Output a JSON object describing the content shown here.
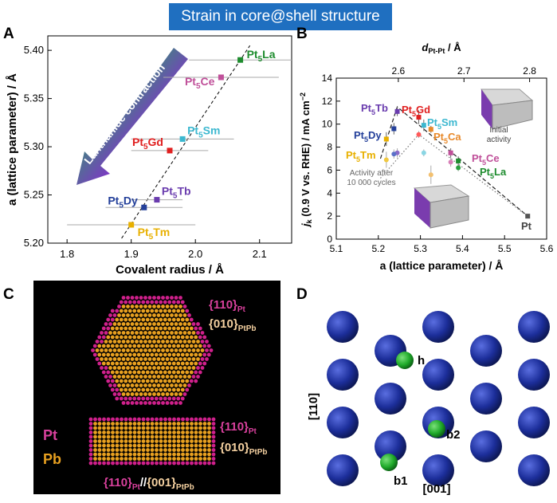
{
  "banner": {
    "title": "Strain in core@shell structure"
  },
  "panels": {
    "A": "A",
    "B": "B",
    "C": "C",
    "D": "D"
  },
  "chart_data": [
    {
      "type": "scatter",
      "panel": "A",
      "xlabel": "Covalent radius / Å",
      "ylabel": "a (lattice parameter) / Å",
      "xlim": [
        1.77,
        2.15
      ],
      "ylim": [
        5.2,
        5.415
      ],
      "xticks": [
        "1.8",
        "1.9",
        "2.0",
        "2.1"
      ],
      "yticks": [
        "5.20",
        "5.25",
        "5.30",
        "5.35",
        "5.40"
      ],
      "arrow_label": "Lanthanide contraction",
      "points": [
        {
          "name": "Pt5La",
          "label": "Pt",
          "sub": "5",
          "suffix": "La",
          "x": 2.07,
          "y": 5.39,
          "xerr": 0.08,
          "color": "#1e8c2e"
        },
        {
          "name": "Pt5Ce",
          "label": "Pt",
          "sub": "5",
          "suffix": "Ce",
          "x": 2.04,
          "y": 5.372,
          "xerr": 0.09,
          "color": "#c0509a"
        },
        {
          "name": "Pt5Sm",
          "label": "Pt",
          "sub": "5",
          "suffix": "Sm",
          "x": 1.98,
          "y": 5.308,
          "xerr": 0.08,
          "color": "#3cb8d0"
        },
        {
          "name": "Pt5Gd",
          "label": "Pt",
          "sub": "5",
          "suffix": "Gd",
          "x": 1.96,
          "y": 5.296,
          "xerr": 0.06,
          "color": "#e01f1f"
        },
        {
          "name": "Pt5Tb",
          "label": "Pt",
          "sub": "5",
          "suffix": "Tb",
          "x": 1.94,
          "y": 5.245,
          "xerr": 0.04,
          "color": "#6a3cae"
        },
        {
          "name": "Pt5Dy",
          "label": "Pt",
          "sub": "5",
          "suffix": "Dy",
          "x": 1.92,
          "y": 5.237,
          "xerr": 0.06,
          "color": "#24409a"
        },
        {
          "name": "Pt5Tm",
          "label": "Pt",
          "sub": "5",
          "suffix": "Tm",
          "x": 1.9,
          "y": 5.219,
          "xerr": 0.1,
          "color": "#e8b000"
        }
      ],
      "fit_line": {
        "x": [
          1.885,
          2.085
        ],
        "y": [
          5.205,
          5.405
        ]
      }
    },
    {
      "type": "scatter",
      "panel": "B",
      "xlabel": "a (lattice parameter) / Å",
      "ylabel": "jk (0.9 V vs. RHE) / mA cm-2",
      "ylabel_parts": {
        "j": "j",
        "k": "k",
        "rest": " (0.9 V vs. RHE) / mA cm",
        "exp": "−2"
      },
      "top_label_parts": {
        "d": "d",
        "sub": "Pt-Pt",
        "rest": " / Å"
      },
      "xlim": [
        5.1,
        5.6
      ],
      "ylim": [
        0,
        14
      ],
      "xticks": [
        "5.1",
        "5.2",
        "5.3",
        "5.4",
        "5.5",
        "5.6"
      ],
      "yticks": [
        "0",
        "2",
        "4",
        "6",
        "8",
        "10",
        "12",
        "14"
      ],
      "top_ticks": [
        {
          "label": "2.6",
          "a": 5.2475
        },
        {
          "label": "2.7",
          "a": 5.4035
        },
        {
          "label": "2.8",
          "a": 5.5595
        }
      ],
      "initial_label": [
        "Initial",
        "activity"
      ],
      "after_label": [
        "Activity after",
        "10 000 cycles"
      ],
      "initial": [
        {
          "name": "Pt5Tb",
          "x": 5.245,
          "y": 11.1,
          "err": 0.4,
          "color": "#6a3cae"
        },
        {
          "name": "Pt5Gd",
          "x": 5.296,
          "y": 10.6,
          "err": 0.6,
          "color": "#e01f1f"
        },
        {
          "name": "Pt5Sm",
          "x": 5.308,
          "y": 9.9,
          "err": 0.5,
          "color": "#3cb8d0"
        },
        {
          "name": "Pt5Ca",
          "x": 5.325,
          "y": 9.55,
          "err": 0.3,
          "color": "#e8892a"
        },
        {
          "name": "Pt5Dy",
          "x": 5.237,
          "y": 9.6,
          "err": 0.5,
          "color": "#24409a"
        },
        {
          "name": "Pt5Tm",
          "x": 5.219,
          "y": 8.7,
          "err": 0.6,
          "color": "#e8b000"
        },
        {
          "name": "Pt5Ce",
          "x": 5.372,
          "y": 7.5,
          "err": 0.4,
          "color": "#c0509a"
        },
        {
          "name": "Pt5La",
          "x": 5.39,
          "y": 6.8,
          "err": 0.4,
          "color": "#1e8c2e"
        },
        {
          "name": "Pt",
          "x": 5.555,
          "y": 2.0,
          "err": 0.1,
          "color": "#555555"
        }
      ],
      "after": [
        {
          "name": "Pt5Tb",
          "x": 5.245,
          "y": 7.5,
          "err": 0.4,
          "color": "#8a6ac8"
        },
        {
          "name": "Pt5Gd",
          "x": 5.296,
          "y": 9.1,
          "err": 0.3,
          "color": "#ff5a5a"
        },
        {
          "name": "Pt5Sm",
          "x": 5.308,
          "y": 7.5,
          "err": 0.3,
          "color": "#8ad6e4"
        },
        {
          "name": "Pt5Ca",
          "x": 5.325,
          "y": 5.6,
          "err": 0.8,
          "color": "#f2c070"
        },
        {
          "name": "Pt5Dy",
          "x": 5.237,
          "y": 7.4,
          "err": 0.4,
          "color": "#5a70c8"
        },
        {
          "name": "Pt5Tm",
          "x": 5.219,
          "y": 6.9,
          "err": 0.7,
          "color": "#f0c840"
        },
        {
          "name": "Pt5Ce",
          "x": 5.372,
          "y": 6.7,
          "err": 0.4,
          "color": "#d880b8"
        },
        {
          "name": "Pt5La",
          "x": 5.39,
          "y": 6.2,
          "err": 0.3,
          "color": "#2aa040"
        }
      ],
      "dash_initial": {
        "x": [
          5.205,
          5.245,
          5.555
        ],
        "y": [
          7.0,
          11.5,
          2.0
        ]
      },
      "dot_after": {
        "x": [
          5.205,
          5.296,
          5.555
        ],
        "y": [
          5.3,
          9.1,
          2.0
        ]
      },
      "labels": [
        {
          "name": "Pt5Tb",
          "pre": "Pt",
          "sub": "5",
          "suf": "Tb",
          "color": "#6a3cae"
        },
        {
          "name": "Pt5Gd",
          "pre": "Pt",
          "sub": "5",
          "suf": "Gd",
          "color": "#e01f1f"
        },
        {
          "name": "Pt5Sm",
          "pre": "Pt",
          "sub": "5",
          "suf": "Sm",
          "color": "#3cb8d0"
        },
        {
          "name": "Pt5Dy",
          "pre": "Pt",
          "sub": "5",
          "suf": "Dy",
          "color": "#24409a"
        },
        {
          "name": "Pt5Ca",
          "pre": "Pt",
          "sub": "5",
          "suf": "Ca",
          "color": "#e8892a"
        },
        {
          "name": "Pt5Tm",
          "pre": "Pt",
          "sub": "5",
          "suf": "Tm",
          "color": "#e8b000"
        },
        {
          "name": "Pt5Ce",
          "pre": "Pt",
          "sub": "5",
          "suf": "Ce",
          "color": "#c0509a"
        },
        {
          "name": "Pt5La",
          "pre": "Pt",
          "sub": "5",
          "suf": "La",
          "color": "#1e8c2e"
        },
        {
          "name": "Pt",
          "pre": "Pt",
          "sub": "",
          "suf": "",
          "color": "#444444"
        }
      ]
    }
  ],
  "panel_c": {
    "hex_label1": {
      "brace": "{110}",
      "sub": "Pt"
    },
    "hex_label2": {
      "brace": "{010}",
      "sub": "PtPb"
    },
    "rect_label1": {
      "brace": "{110}",
      "sub": "Pt"
    },
    "rect_label2": {
      "brace": "{010}",
      "sub": "PtPb"
    },
    "legend_pt": "Pt",
    "legend_pb": "Pb",
    "bottom": {
      "a": "{110}",
      "asub": "Pt",
      "sep": "//",
      "b": "{001}",
      "bsub": "PtPb"
    },
    "colors": {
      "pt": "#d0208c",
      "pb": "#e8a020",
      "bg": "#000000"
    }
  },
  "panel_d": {
    "label_h": "h",
    "label_b1": "b1",
    "label_b2": "b2",
    "axis_v": "[110]",
    "axis_h": "[001]",
    "colors": {
      "host": "#1c2e9a",
      "guest": "#1faa2a"
    }
  }
}
